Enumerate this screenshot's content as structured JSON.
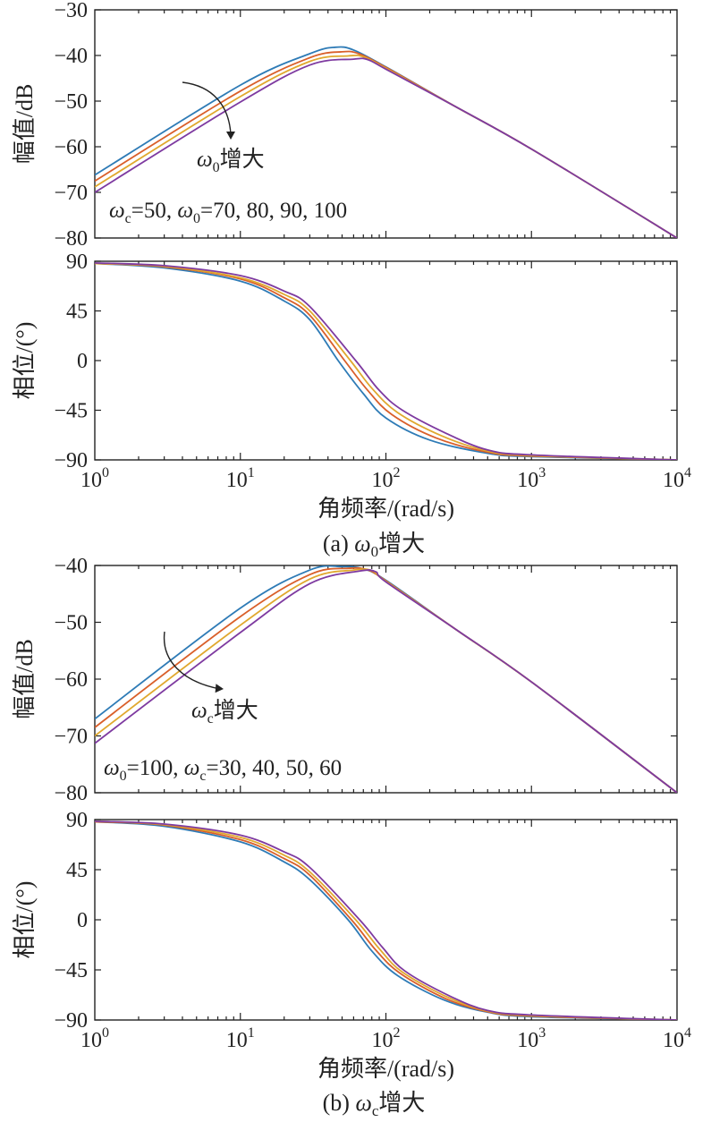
{
  "colors": [
    "#2e7bb6",
    "#d95f2a",
    "#e0a82e",
    "#7e3aa0"
  ],
  "chart_data": [
    {
      "type": "line",
      "panel": "a-magnitude",
      "xscale": "log",
      "xlim": [
        1,
        10000
      ],
      "ylim": [
        -80,
        -30
      ],
      "ylabel": "幅值/dB",
      "yticks": [
        "−80",
        "−70",
        "−60",
        "−50",
        "−40",
        "−30"
      ],
      "yticks_values": [
        -80,
        -70,
        -60,
        -50,
        -40,
        -30
      ],
      "annotation_text": "增大",
      "annotation_var": "ω",
      "annotation_sub": "0",
      "params_text": "=50, ",
      "params_var1": "ω",
      "params_sub1": "c",
      "params_var2": "ω",
      "params_sub2": "0",
      "params_tail": "=70, 80, 90, 100",
      "series": [
        {
          "x": [
            1,
            10,
            30,
            45,
            60,
            100,
            300,
            1000,
            10000
          ],
          "y": [
            -66.2,
            -46.5,
            -39.6,
            -38.2,
            -38.8,
            -42.5,
            -51.2,
            -60.5,
            -80
          ]
        },
        {
          "x": [
            1,
            10,
            30,
            50,
            65,
            100,
            300,
            1000,
            10000
          ],
          "y": [
            -67.5,
            -47.8,
            -40.5,
            -39.2,
            -39.6,
            -42.6,
            -51.2,
            -60.5,
            -80
          ]
        },
        {
          "x": [
            1,
            10,
            30,
            55,
            70,
            100,
            300,
            1000,
            10000
          ],
          "y": [
            -68.8,
            -49.0,
            -41.3,
            -40.1,
            -40.3,
            -42.8,
            -51.2,
            -60.5,
            -80
          ]
        },
        {
          "x": [
            1,
            10,
            30,
            60,
            75,
            100,
            300,
            1000,
            10000
          ],
          "y": [
            -70.0,
            -50.2,
            -42.1,
            -40.8,
            -40.9,
            -43.0,
            -51.2,
            -60.5,
            -80
          ]
        }
      ]
    },
    {
      "type": "line",
      "panel": "a-phase",
      "xscale": "log",
      "xlim": [
        1,
        10000
      ],
      "ylim": [
        -90,
        90
      ],
      "ylabel": "相位/(°)",
      "xlabel": "角频率/(rad/s)",
      "yticks": [
        "−90",
        "−45",
        "0",
        "45",
        "90"
      ],
      "yticks_values": [
        -90,
        -45,
        0,
        45,
        90
      ],
      "xticks_values": [
        1,
        10,
        100,
        1000,
        10000
      ],
      "xticks_base": "10",
      "xticks_exp": [
        "0",
        "1",
        "2",
        "3",
        "4"
      ],
      "series": [
        {
          "x": [
            1,
            3,
            10,
            20,
            30,
            47,
            70,
            100,
            200,
            500,
            1000,
            10000
          ],
          "y": [
            88,
            84,
            72,
            54,
            37,
            0,
            -30,
            -52,
            -72,
            -84,
            -87,
            -90
          ]
        },
        {
          "x": [
            1,
            3,
            10,
            20,
            30,
            52,
            75,
            110,
            220,
            500,
            1000,
            10000
          ],
          "y": [
            88,
            85,
            74,
            57,
            41,
            0,
            -27,
            -49,
            -70,
            -83,
            -86.5,
            -90
          ]
        },
        {
          "x": [
            1,
            3,
            10,
            20,
            30,
            57,
            80,
            120,
            240,
            500,
            1000,
            10000
          ],
          "y": [
            88,
            85.5,
            75,
            60,
            45,
            0,
            -25,
            -47,
            -68,
            -82,
            -86,
            -90
          ]
        },
        {
          "x": [
            1,
            3,
            10,
            20,
            30,
            62,
            90,
            130,
            260,
            500,
            1000,
            10000
          ],
          "y": [
            88.5,
            86,
            77,
            63,
            49,
            0,
            -27,
            -45,
            -66,
            -81,
            -85.5,
            -90
          ]
        }
      ]
    },
    {
      "type": "line",
      "panel": "b-magnitude",
      "xscale": "log",
      "xlim": [
        1,
        10000
      ],
      "ylim": [
        -80,
        -40
      ],
      "ylabel": "幅值/dB",
      "yticks": [
        "−80",
        "−70",
        "−60",
        "−50",
        "−40"
      ],
      "yticks_values": [
        -80,
        -70,
        -60,
        -50,
        -40
      ],
      "annotation_text": "增大",
      "annotation_var": "ω",
      "annotation_sub": "c",
      "params_text": "=100, ",
      "params_var1": "ω",
      "params_sub1": "0",
      "params_var2": "ω",
      "params_sub2": "c",
      "params_tail": "=30, 40, 50, 60",
      "series": [
        {
          "x": [
            1,
            10,
            30,
            50,
            70,
            100,
            300,
            1000,
            10000
          ],
          "y": [
            -67.0,
            -47.5,
            -40.8,
            -40.2,
            -40.6,
            -42.6,
            -51.2,
            -60.5,
            -80
          ]
        },
        {
          "x": [
            1,
            10,
            30,
            55,
            75,
            100,
            300,
            1000,
            10000
          ],
          "y": [
            -68.5,
            -49.0,
            -41.6,
            -40.5,
            -40.8,
            -42.7,
            -51.2,
            -60.5,
            -80
          ]
        },
        {
          "x": [
            1,
            10,
            30,
            60,
            80,
            100,
            300,
            1000,
            10000
          ],
          "y": [
            -70.0,
            -50.5,
            -42.4,
            -40.8,
            -40.9,
            -42.8,
            -51.2,
            -60.5,
            -80
          ]
        },
        {
          "x": [
            1,
            10,
            30,
            65,
            85,
            100,
            300,
            1000,
            10000
          ],
          "y": [
            -71.3,
            -51.8,
            -43.2,
            -41.0,
            -41.1,
            -42.9,
            -51.2,
            -60.5,
            -80
          ]
        }
      ]
    },
    {
      "type": "line",
      "panel": "b-phase",
      "xscale": "log",
      "xlim": [
        1,
        10000
      ],
      "ylim": [
        -90,
        90
      ],
      "ylabel": "相位/(°)",
      "xlabel": "角频率/(rad/s)",
      "yticks": [
        "−90",
        "−45",
        "0",
        "45",
        "90"
      ],
      "yticks_values": [
        -90,
        -45,
        0,
        45,
        90
      ],
      "xticks_values": [
        1,
        10,
        100,
        1000,
        10000
      ],
      "xticks_base": "10",
      "xticks_exp": [
        "0",
        "1",
        "2",
        "3",
        "4"
      ],
      "series": [
        {
          "x": [
            1,
            3,
            10,
            20,
            30,
            55,
            80,
            120,
            250,
            500,
            1000,
            10000
          ],
          "y": [
            88,
            84,
            70,
            52,
            36,
            0,
            -28,
            -50,
            -72,
            -83,
            -87,
            -90
          ]
        },
        {
          "x": [
            1,
            3,
            10,
            20,
            30,
            58,
            85,
            125,
            260,
            500,
            1000,
            10000
          ],
          "y": [
            88,
            85,
            72,
            55,
            40,
            0,
            -27,
            -48,
            -71,
            -82.5,
            -86.5,
            -90
          ]
        },
        {
          "x": [
            1,
            3,
            10,
            20,
            30,
            62,
            90,
            130,
            270,
            500,
            1000,
            10000
          ],
          "y": [
            88.5,
            85.5,
            74,
            58,
            43,
            0,
            -26,
            -47,
            -70,
            -82,
            -86,
            -90
          ]
        },
        {
          "x": [
            1,
            3,
            10,
            20,
            30,
            66,
            95,
            135,
            280,
            500,
            1000,
            10000
          ],
          "y": [
            88.5,
            86,
            76,
            61,
            47,
            0,
            -25,
            -46,
            -69,
            -81.5,
            -85.5,
            -90
          ]
        }
      ]
    }
  ],
  "captions": {
    "a_prefix": "(a) ",
    "a_var": "ω",
    "a_sub": "0",
    "a_suffix": "增大",
    "b_prefix": "(b) ",
    "b_var": "ω",
    "b_sub": "c",
    "b_suffix": "增大"
  }
}
